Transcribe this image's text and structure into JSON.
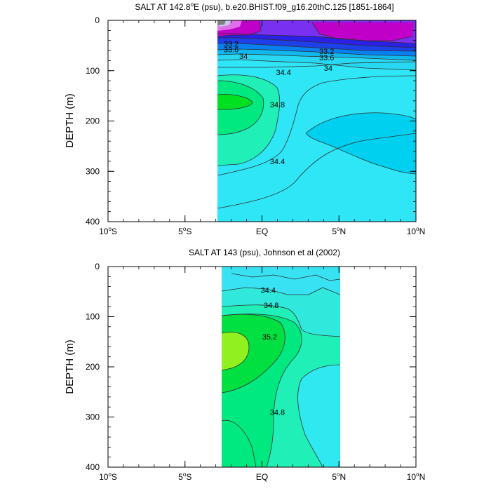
{
  "colors": {
    "c33_0": "#808080",
    "c33_2": "#D000D8",
    "c33_4": "#C8C8F0",
    "c33_6": "#2020E8",
    "c33_8": "#1010FF",
    "c34_0": "#0080FF",
    "c34_2": "#00B8F8",
    "c34_4": "#00D0F0",
    "c34_6": "#30E8F0",
    "c34_8": "#20F0B8",
    "c35_0": "#00E880",
    "c35_2": "#00E020",
    "c35_4": "#90F020",
    "violet": "#7A30F0",
    "magenta": "#C000C8",
    "line": "#303030"
  },
  "chart_data": [
    {
      "type": "contour",
      "title": "SALT AT 142.8°E (psu), b.e20.BHIST.f09_g16.20thC.125 [1851-1864]",
      "title_parts": {
        "pre": "SALT AT 142.8",
        "sup": "o",
        "post": "E (psu), b.e20.BHIST.f09_g16.20thC.125 [1851-1864]"
      },
      "ylabel": "DEPTH (m)",
      "xlim": [
        -10,
        10
      ],
      "ylim": [
        400,
        0
      ],
      "data_xrange": [
        -3,
        10
      ],
      "x_ticks": [
        {
          "value": -10,
          "label": "10",
          "sup": "o",
          "suffix": "S"
        },
        {
          "value": -5,
          "label": "5",
          "sup": "o",
          "suffix": "S"
        },
        {
          "value": 0,
          "label": "EQ",
          "sup": "",
          "suffix": ""
        },
        {
          "value": 5,
          "label": "5",
          "sup": "o",
          "suffix": "N"
        },
        {
          "value": 10,
          "label": "10",
          "sup": "o",
          "suffix": "N"
        }
      ],
      "y_ticks": [
        0,
        100,
        200,
        300,
        400
      ],
      "contour_labels": [
        {
          "text": "33.2",
          "x": -2.0,
          "y": 47
        },
        {
          "text": "33.6",
          "x": -2.0,
          "y": 58
        },
        {
          "text": "34",
          "x": -1.2,
          "y": 71
        },
        {
          "text": "33.2",
          "x": 4.2,
          "y": 61
        },
        {
          "text": "33.6",
          "x": 4.2,
          "y": 74
        },
        {
          "text": "34",
          "x": 4.3,
          "y": 95
        },
        {
          "text": "34.4",
          "x": 1.4,
          "y": 103
        },
        {
          "text": "34.8",
          "x": 1.0,
          "y": 167
        },
        {
          "text": "34.4",
          "x": 1.0,
          "y": 280
        }
      ]
    },
    {
      "type": "contour",
      "title": "SALT AT 143 (psu), Johnson et al (2002)",
      "ylabel": "DEPTH (m)",
      "xlim": [
        -10,
        10
      ],
      "ylim": [
        400,
        0
      ],
      "data_xrange": [
        -2.8,
        5
      ],
      "x_ticks": [
        {
          "value": -10,
          "label": "10",
          "sup": "o",
          "suffix": "S"
        },
        {
          "value": -5,
          "label": "5",
          "sup": "o",
          "suffix": "S"
        },
        {
          "value": 0,
          "label": "EQ",
          "sup": "",
          "suffix": ""
        },
        {
          "value": 5,
          "label": "5",
          "sup": "o",
          "suffix": "N"
        },
        {
          "value": 10,
          "label": "10",
          "sup": "o",
          "suffix": "N"
        }
      ],
      "y_ticks": [
        0,
        100,
        200,
        300,
        400
      ],
      "contour_labels": [
        {
          "text": "34.4",
          "x": 0.4,
          "y": 47
        },
        {
          "text": "34.8",
          "x": 0.6,
          "y": 77
        },
        {
          "text": "35.2",
          "x": 0.5,
          "y": 140
        },
        {
          "text": "34.8",
          "x": 1.0,
          "y": 290
        }
      ]
    }
  ]
}
